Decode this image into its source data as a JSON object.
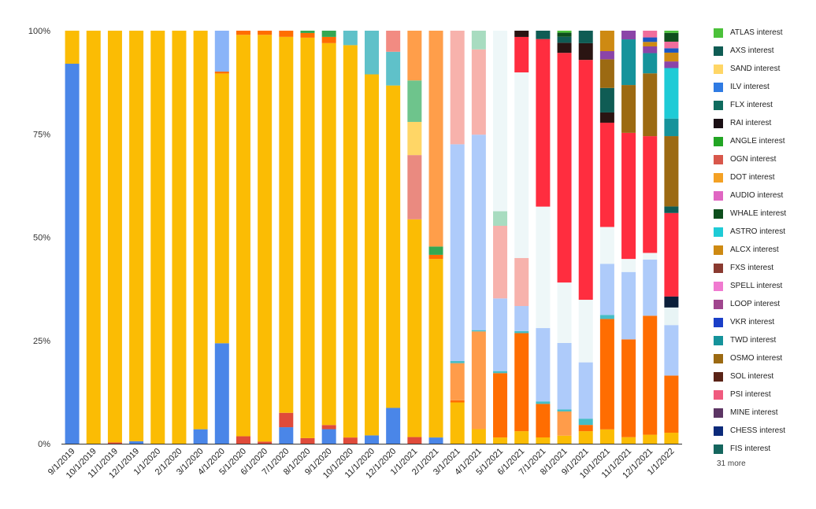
{
  "chart_data": {
    "type": "bar",
    "stacked": "percent",
    "title": "",
    "xlabel": "",
    "ylabel": "",
    "ylim": [
      0,
      100
    ],
    "y_ticks": [
      "0%",
      "25%",
      "50%",
      "75%",
      "100%"
    ],
    "grid": false,
    "legend_position": "right",
    "categories": [
      "9/1/2019",
      "10/1/2019",
      "11/1/2019",
      "12/1/2019",
      "1/1/2020",
      "2/1/2020",
      "3/1/2020",
      "4/1/2020",
      "5/1/2020",
      "6/1/2020",
      "7/1/2020",
      "8/1/2020",
      "9/1/2020",
      "10/1/2020",
      "11/1/2020",
      "12/1/2020",
      "1/1/2021",
      "2/1/2021",
      "3/1/2021",
      "4/1/2021",
      "5/1/2021",
      "6/1/2021",
      "7/1/2021",
      "8/1/2021",
      "9/1/2021",
      "10/1/2021",
      "11/1/2021",
      "12/1/2021",
      "1/1/2022"
    ],
    "series": [
      {
        "color": "#4a86e8",
        "values": [
          92,
          0,
          0,
          0.6,
          0,
          0,
          3.5,
          27,
          0,
          0,
          4,
          0,
          3.5,
          0,
          2,
          8.5,
          0,
          1.5,
          0,
          0,
          0,
          0,
          0,
          0,
          0,
          0,
          0,
          0,
          0
        ]
      },
      {
        "color": "#e04b3a",
        "values": [
          0,
          0,
          0.3,
          0,
          0,
          0,
          0,
          0,
          1.8,
          0.5,
          3.5,
          1.2,
          1,
          1.5,
          0,
          0,
          1.6,
          0,
          0,
          0,
          0,
          0,
          0,
          0,
          0,
          0,
          0,
          0,
          0
        ]
      },
      {
        "color": "#fbbc04",
        "values": [
          8,
          100,
          99.7,
          99.4,
          100,
          100,
          96.5,
          72.5,
          97.2,
          98.5,
          91.3,
          86,
          92,
          95,
          86.8,
          76.5,
          52.5,
          43,
          10,
          3.5,
          1.5,
          3,
          1.5,
          2,
          3,
          3.5,
          1.5,
          2,
          2.5
        ]
      },
      {
        "color": "#ff6d01",
        "values": [
          0,
          0,
          0,
          0,
          0,
          0,
          0,
          0.5,
          1,
          1,
          1.5,
          1,
          1.5,
          0,
          0,
          0,
          0,
          1,
          0.5,
          0,
          15.5,
          23.5,
          8,
          0,
          1.5,
          27,
          22.5,
          26.5,
          13
        ]
      },
      {
        "color": "#ff9c4a",
        "values": [
          0,
          0,
          0,
          0,
          0,
          0,
          0,
          0,
          0,
          0,
          0,
          0,
          0,
          0,
          0,
          0,
          0,
          0,
          9,
          23.5,
          0,
          0,
          0,
          6,
          0,
          0,
          0,
          0,
          0
        ]
      },
      {
        "color": "#46bdc6",
        "values": [
          0,
          0,
          0,
          0,
          0,
          0,
          0,
          0,
          0,
          0,
          0,
          0,
          0,
          0,
          0,
          0,
          0,
          0,
          0.5,
          0.3,
          0.5,
          0.5,
          0.6,
          0.5,
          1.5,
          1,
          0,
          0,
          0
        ]
      },
      {
        "color": "#aecbfa",
        "values": [
          0,
          0,
          0,
          0,
          0,
          0,
          0,
          0,
          0,
          0,
          0,
          0,
          0,
          0,
          0,
          0,
          0,
          0,
          52.5,
          47,
          17.5,
          6,
          17.5,
          16.5,
          13.5,
          12.5,
          15.5,
          12.5,
          11.5
        ]
      },
      {
        "color": "#e8f4f5",
        "values": [
          0,
          0,
          0,
          0,
          0,
          0,
          0,
          0,
          0,
          0,
          0,
          0,
          0,
          0,
          0,
          0,
          0,
          0,
          0,
          0,
          0,
          0,
          0,
          0,
          0,
          0,
          0,
          0,
          4
        ]
      },
      {
        "color": "#0b1f3a",
        "values": [
          0,
          0,
          0,
          0,
          0,
          0,
          0,
          0,
          0,
          0,
          0,
          0,
          0,
          0,
          0,
          0,
          0,
          0,
          0,
          0,
          0,
          0,
          0,
          0,
          0,
          0,
          0,
          0,
          2.5
        ]
      },
      {
        "color": "#ff2d3f",
        "values": [
          0,
          0,
          0,
          0,
          0,
          0,
          0,
          0,
          0,
          0,
          0,
          0,
          0,
          0,
          0,
          0,
          0,
          0,
          0,
          0,
          0,
          0,
          0,
          0,
          0,
          0,
          0,
          0,
          19
        ]
      },
      {
        "color": "#34a853",
        "values": [
          0,
          0,
          0,
          0,
          0,
          0,
          0,
          0,
          0,
          0,
          0,
          0.5,
          1.5,
          0,
          0,
          0,
          0,
          2,
          0,
          0,
          0,
          0,
          0,
          0,
          0,
          0,
          0,
          0,
          0
        ]
      },
      {
        "color": "#ea8a80",
        "values": [
          0,
          0,
          0,
          0,
          0,
          0,
          0,
          0,
          0,
          0,
          0,
          0,
          0,
          0,
          0,
          0,
          15.5,
          0,
          0,
          0,
          0,
          0,
          0,
          0,
          0,
          0,
          0,
          0,
          0
        ]
      },
      {
        "color": "#ffd666",
        "values": [
          0,
          0,
          0,
          0,
          0,
          0,
          0,
          0,
          0,
          0,
          0,
          0,
          0,
          0,
          0,
          0,
          8,
          0,
          0,
          0,
          0,
          0,
          0,
          0,
          0,
          0,
          0,
          0,
          0
        ]
      },
      {
        "color": "#f7b2ac",
        "values": [
          0,
          0,
          0,
          0,
          0,
          0,
          0,
          0,
          0,
          0,
          0,
          0,
          0,
          0,
          0,
          0,
          0,
          0,
          27.5,
          20.5,
          17.5,
          11.5,
          0,
          0,
          0,
          0,
          0,
          0,
          0
        ]
      },
      {
        "color": "#a8dcc0",
        "values": [
          0,
          0,
          0,
          0,
          0,
          0,
          0,
          0,
          0,
          0,
          0,
          0,
          0,
          0,
          0,
          0,
          0,
          0,
          0,
          4.5,
          3.5,
          0,
          0,
          0,
          0,
          0,
          0,
          0,
          0
        ]
      },
      {
        "color": "#eef7f8",
        "values": [
          0,
          0,
          0,
          0,
          0,
          0,
          0,
          0,
          0,
          0,
          0,
          0,
          0,
          0,
          0,
          0,
          0,
          0,
          0,
          0,
          43.5,
          44.5,
          29,
          15,
          15,
          9,
          3,
          1.5,
          0
        ]
      },
      {
        "color": "#ff2d3f",
        "values": [
          0,
          0,
          0,
          0,
          0,
          0,
          0,
          0,
          0,
          0,
          0,
          0,
          0,
          0,
          0,
          0,
          0,
          0,
          0,
          0,
          0,
          8.5,
          40,
          57,
          57.5,
          25.5,
          29,
          26,
          0
        ]
      },
      {
        "color": "#6ec48c",
        "values": [
          0,
          0,
          0,
          0,
          0,
          0,
          0,
          0,
          0,
          0,
          0,
          0,
          0,
          0,
          0,
          0,
          10,
          0,
          0,
          0,
          0,
          0,
          0,
          0,
          0,
          0,
          0,
          0,
          0
        ]
      },
      {
        "color": "#8ab4f8",
        "values": [
          0,
          0,
          0,
          0,
          0,
          0,
          0,
          11,
          0,
          0,
          0,
          0,
          0,
          0,
          0,
          0,
          0,
          0,
          0,
          0,
          0,
          0,
          0,
          0,
          0,
          0,
          0,
          0,
          0
        ]
      },
      {
        "color": "#5fc1c9",
        "values": [
          0,
          0,
          0,
          0,
          0,
          0,
          0,
          0,
          0,
          0,
          0,
          0,
          0,
          3.5,
          10.5,
          8,
          0,
          0,
          0,
          0,
          0,
          0,
          0,
          0,
          0,
          0,
          0,
          0,
          0
        ]
      },
      {
        "color": "#f28b82",
        "values": [
          0,
          0,
          0,
          0,
          0,
          0,
          0,
          0,
          0,
          0,
          0,
          0,
          0,
          0,
          0,
          5,
          0,
          0,
          0,
          0,
          0,
          0,
          0,
          0,
          0,
          0,
          0,
          0,
          0
        ]
      },
      {
        "color": "#ff9e4a",
        "values": [
          0,
          0,
          0,
          0,
          0,
          0,
          0,
          0,
          0,
          0,
          0,
          0,
          0,
          0,
          0,
          0,
          12,
          52,
          0,
          0,
          0,
          0,
          0,
          0,
          0,
          0,
          0,
          0,
          0
        ]
      },
      {
        "color": "#2a1412",
        "values": [
          0,
          0,
          0,
          0,
          0,
          0,
          0,
          0,
          0,
          0,
          0,
          0,
          0,
          0,
          0,
          0,
          0,
          0,
          0,
          0,
          0,
          1.5,
          0,
          2.5,
          4,
          2.5,
          0,
          0,
          0
        ]
      },
      {
        "color": "#0f5c54",
        "values": [
          0,
          0,
          0,
          0,
          0,
          0,
          0,
          0,
          0,
          0,
          0,
          0,
          0,
          0,
          0,
          0,
          0,
          0,
          0,
          0,
          0,
          0,
          2,
          1.5,
          3,
          6,
          0,
          0,
          1.5
        ]
      },
      {
        "color": "#9c6a12",
        "values": [
          0,
          0,
          0,
          0,
          0,
          0,
          0,
          0,
          0,
          0,
          0,
          0,
          0,
          0,
          0,
          0,
          0,
          0,
          0,
          0,
          0,
          0,
          0,
          0,
          0,
          7,
          11,
          14,
          16
        ]
      },
      {
        "color": "#15939b",
        "values": [
          0,
          0,
          0,
          0,
          0,
          0,
          0,
          0,
          0,
          0,
          0,
          0,
          0,
          0,
          0,
          0,
          0,
          0,
          0,
          0,
          0,
          0,
          0,
          0,
          0,
          0,
          10.5,
          4.5,
          4
        ]
      },
      {
        "color": "#1ecbd6",
        "values": [
          0,
          0,
          0,
          0,
          0,
          0,
          0,
          0,
          0,
          0,
          0,
          0,
          0,
          0,
          0,
          0,
          0,
          0,
          0,
          0,
          0,
          0,
          0,
          0,
          0,
          0,
          0,
          0,
          11.5
        ]
      },
      {
        "color": "#8b44a8",
        "values": [
          0,
          0,
          0,
          0,
          0,
          0,
          0,
          0,
          0,
          0,
          0,
          0,
          0,
          0,
          0,
          0,
          0,
          0,
          0,
          0,
          0,
          0,
          0,
          0,
          0,
          2,
          2,
          1.5,
          1.5
        ]
      },
      {
        "color": "#ce8a12",
        "values": [
          0,
          0,
          0,
          0,
          0,
          0,
          0,
          0,
          0,
          0,
          0,
          0,
          0,
          0,
          0,
          0,
          0,
          0,
          0,
          0,
          0,
          0,
          0,
          0,
          0,
          5,
          0,
          1,
          2
        ]
      },
      {
        "color": "#1a56c2",
        "values": [
          0,
          0,
          0,
          0,
          0,
          0,
          0,
          0,
          0,
          0,
          0,
          0,
          0,
          0,
          0,
          0,
          0,
          0,
          0,
          0,
          0,
          0,
          0,
          0,
          0,
          0,
          0,
          1,
          1
        ]
      },
      {
        "color": "#f06d9c",
        "values": [
          0,
          0,
          0,
          0,
          0,
          0,
          0,
          0,
          0,
          0,
          0,
          0,
          0,
          0,
          0,
          0,
          0,
          0,
          0,
          0,
          0,
          0,
          0,
          0,
          0,
          0,
          0,
          1.5,
          1.5
        ]
      },
      {
        "color": "#0d4e1c",
        "values": [
          0,
          0,
          0,
          0,
          0,
          0,
          0,
          0,
          0,
          0,
          0,
          0,
          0,
          0,
          0,
          0,
          0,
          0,
          0,
          0,
          0,
          0,
          0,
          1,
          0,
          0,
          0,
          0,
          2
        ]
      },
      {
        "color": "#4bc13a",
        "values": [
          0,
          0,
          0,
          0,
          0,
          0,
          0,
          0,
          0,
          0,
          0,
          0,
          0,
          0,
          0,
          0,
          0,
          0,
          0,
          0,
          0,
          0,
          0,
          0.5,
          0,
          0,
          0,
          0,
          0.5
        ]
      }
    ]
  },
  "legend": {
    "items": [
      {
        "label": "ATLAS interest",
        "color": "#4bc13a"
      },
      {
        "label": "AXS interest",
        "color": "#0f5c54"
      },
      {
        "label": "SAND interest",
        "color": "#ffd666"
      },
      {
        "label": "ILV interest",
        "color": "#2f7be3"
      },
      {
        "label": "FLX interest",
        "color": "#0f6b5e"
      },
      {
        "label": "RAI interest",
        "color": "#1a0f14"
      },
      {
        "label": "ANGLE interest",
        "color": "#22a524"
      },
      {
        "label": "OGN interest",
        "color": "#d8574b"
      },
      {
        "label": "DOT interest",
        "color": "#f4a124"
      },
      {
        "label": "AUDIO interest",
        "color": "#e066c2"
      },
      {
        "label": "WHALE interest",
        "color": "#0d4e1c"
      },
      {
        "label": "ASTRO interest",
        "color": "#1ecbd6"
      },
      {
        "label": "ALCX interest",
        "color": "#ce8a12"
      },
      {
        "label": "FXS interest",
        "color": "#8a3a30"
      },
      {
        "label": "SPELL interest",
        "color": "#f07ad0"
      },
      {
        "label": "LOOP interest",
        "color": "#a0468e"
      },
      {
        "label": "VKR interest",
        "color": "#1a3fc8"
      },
      {
        "label": "TWD interest",
        "color": "#15939b"
      },
      {
        "label": "OSMO interest",
        "color": "#9c6a12"
      },
      {
        "label": "SOL interest",
        "color": "#5a2316"
      },
      {
        "label": "PSI interest",
        "color": "#f05a7e"
      },
      {
        "label": "MINE interest",
        "color": "#5c3564"
      },
      {
        "label": "CHESS interest",
        "color": "#0b2a7a"
      },
      {
        "label": "FIS interest",
        "color": "#14665e"
      }
    ],
    "more": "31 more"
  }
}
